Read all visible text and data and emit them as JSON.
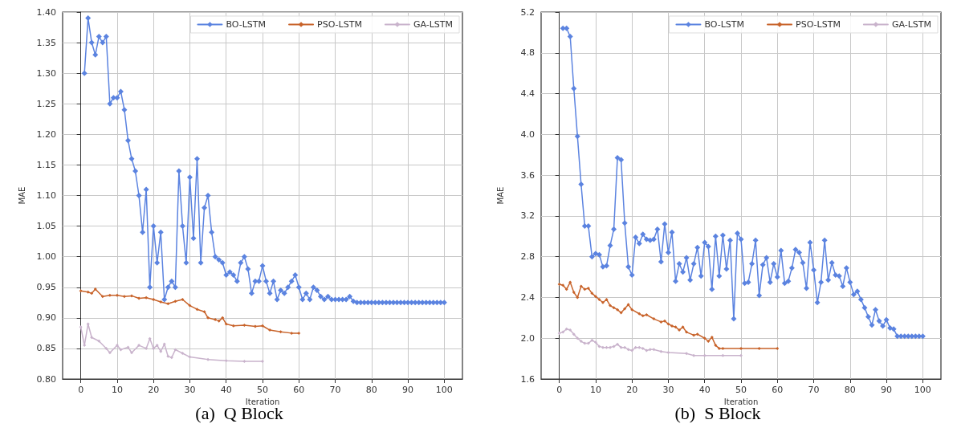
{
  "chart_data": [
    {
      "type": "line",
      "title": "(a)  Q Block",
      "xlabel": "Iteration",
      "ylabel": "MAE",
      "marker": "diamond",
      "grid": true,
      "legend": "top right",
      "xlim": [
        -5,
        105
      ],
      "xticks": [
        0,
        10,
        20,
        30,
        40,
        50,
        60,
        70,
        80,
        90,
        100
      ],
      "ylim": [
        0.8,
        1.4
      ],
      "yticks": [
        {
          "value": 0.8,
          "label": "0.80"
        },
        {
          "value": 0.85,
          "label": "0.85"
        },
        {
          "value": 0.9,
          "label": "0.90"
        },
        {
          "value": 0.95,
          "label": "0.95"
        },
        {
          "value": 1.0,
          "label": "1.00"
        },
        {
          "value": 1.05,
          "label": "1.05"
        },
        {
          "value": 1.1,
          "label": "1.10"
        },
        {
          "value": 1.15,
          "label": "1.15"
        },
        {
          "value": 1.2,
          "label": "1.20"
        },
        {
          "value": 1.25,
          "label": "1.25"
        },
        {
          "value": 1.3,
          "label": "1.30"
        },
        {
          "value": 1.35,
          "label": "1.35"
        },
        {
          "value": 1.4,
          "label": "1.40"
        }
      ],
      "series": [
        {
          "name": "BO-LSTM",
          "color": "#5b83e0",
          "x": [
            1,
            2,
            3,
            4,
            5,
            6,
            7,
            8,
            9,
            10,
            11,
            12,
            13,
            14,
            15,
            16,
            17,
            18,
            19,
            20,
            21,
            22,
            23,
            24,
            25,
            26,
            27,
            28,
            29,
            30,
            31,
            32,
            33,
            34,
            35,
            36,
            37,
            38,
            39,
            40,
            41,
            42,
            43,
            44,
            45,
            46,
            47,
            48,
            49,
            50,
            51,
            52,
            53,
            54,
            55,
            56,
            57,
            58,
            59,
            60,
            61,
            62,
            63,
            64,
            65,
            66,
            67,
            68,
            69,
            70,
            71,
            72,
            73,
            74,
            75,
            76,
            77,
            78,
            79,
            80,
            81,
            82,
            83,
            84,
            85,
            86,
            87,
            88,
            89,
            90,
            91,
            92,
            93,
            94,
            95,
            96,
            97,
            98,
            99,
            100
          ],
          "values": [
            1.3,
            1.39,
            1.35,
            1.33,
            1.36,
            1.35,
            1.36,
            1.25,
            1.26,
            1.26,
            1.27,
            1.24,
            1.19,
            1.16,
            1.14,
            1.1,
            1.04,
            1.11,
            0.95,
            1.05,
            0.99,
            1.04,
            0.93,
            0.95,
            0.96,
            0.95,
            1.14,
            1.05,
            0.99,
            1.13,
            1.03,
            1.16,
            0.99,
            1.08,
            1.1,
            1.04,
            1.0,
            0.995,
            0.99,
            0.97,
            0.975,
            0.97,
            0.96,
            0.99,
            1.0,
            0.98,
            0.94,
            0.96,
            0.96,
            0.985,
            0.96,
            0.94,
            0.96,
            0.93,
            0.945,
            0.94,
            0.95,
            0.96,
            0.97,
            0.95,
            0.93,
            0.94,
            0.93,
            0.95,
            0.945,
            0.935,
            0.93,
            0.935,
            0.93,
            0.93,
            0.93,
            0.93,
            0.93,
            0.935,
            0.927,
            0.925,
            0.925,
            0.925,
            0.925,
            0.925,
            0.925,
            0.925,
            0.925,
            0.925,
            0.925,
            0.925,
            0.925,
            0.925,
            0.925,
            0.925,
            0.925,
            0.925,
            0.925,
            0.925,
            0.925,
            0.925,
            0.925,
            0.925,
            0.925,
            0.925
          ]
        },
        {
          "name": "PSO-LSTM",
          "color": "#c8632a",
          "x": [
            0,
            2,
            3,
            4,
            6,
            8,
            10,
            12,
            14,
            16,
            18,
            20,
            22,
            24,
            26,
            28,
            30,
            32,
            34,
            35,
            37,
            38,
            39,
            40,
            42,
            45,
            48,
            50,
            52,
            55,
            58,
            60
          ],
          "values": [
            0.944,
            0.942,
            0.94,
            0.947,
            0.935,
            0.937,
            0.937,
            0.935,
            0.936,
            0.932,
            0.933,
            0.93,
            0.926,
            0.923,
            0.927,
            0.93,
            0.92,
            0.914,
            0.91,
            0.9,
            0.897,
            0.895,
            0.9,
            0.89,
            0.887,
            0.888,
            0.886,
            0.887,
            0.88,
            0.877,
            0.875,
            0.875
          ]
        },
        {
          "name": "GA-LSTM",
          "color": "#c9b3cc",
          "x": [
            0,
            1,
            2,
            3,
            5,
            7,
            8,
            10,
            11,
            13,
            14,
            16,
            18,
            19,
            20,
            21,
            22,
            23,
            24,
            25,
            26,
            28,
            30,
            35,
            40,
            45,
            50
          ],
          "values": [
            0.885,
            0.855,
            0.89,
            0.868,
            0.862,
            0.85,
            0.843,
            0.855,
            0.848,
            0.852,
            0.843,
            0.855,
            0.85,
            0.866,
            0.85,
            0.855,
            0.845,
            0.857,
            0.837,
            0.835,
            0.848,
            0.842,
            0.836,
            0.832,
            0.83,
            0.829,
            0.829
          ]
        }
      ]
    },
    {
      "type": "line",
      "title": "(b)  S Block",
      "xlabel": "Iteration",
      "ylabel": "MAE",
      "marker": "diamond",
      "grid": true,
      "legend": "top right",
      "xlim": [
        -5,
        105
      ],
      "xticks": [
        0,
        10,
        20,
        30,
        40,
        50,
        60,
        70,
        80,
        90,
        100
      ],
      "ylim": [
        1.6,
        5.2
      ],
      "yticks": [
        {
          "value": 1.6,
          "label": "1.6"
        },
        {
          "value": 2.0,
          "label": "2.0"
        },
        {
          "value": 2.4,
          "label": "2.4"
        },
        {
          "value": 2.8,
          "label": "2.8"
        },
        {
          "value": 3.2,
          "label": "3.2"
        },
        {
          "value": 3.6,
          "label": "3.6"
        },
        {
          "value": 4.0,
          "label": "4.0"
        },
        {
          "value": 4.4,
          "label": "4.4"
        },
        {
          "value": 4.8,
          "label": "4.8"
        },
        {
          "value": 5.2,
          "label": "5.2"
        }
      ],
      "series": [
        {
          "name": "BO-LSTM",
          "color": "#5b83e0",
          "x": [
            1,
            2,
            3,
            4,
            5,
            6,
            7,
            8,
            9,
            10,
            11,
            12,
            13,
            14,
            15,
            16,
            17,
            18,
            19,
            20,
            21,
            22,
            23,
            24,
            25,
            26,
            27,
            28,
            29,
            30,
            31,
            32,
            33,
            34,
            35,
            36,
            37,
            38,
            39,
            40,
            41,
            42,
            43,
            44,
            45,
            46,
            47,
            48,
            49,
            50,
            51,
            52,
            53,
            54,
            55,
            56,
            57,
            58,
            59,
            60,
            61,
            62,
            63,
            64,
            65,
            66,
            67,
            68,
            69,
            70,
            71,
            72,
            73,
            74,
            75,
            76,
            77,
            78,
            79,
            80,
            81,
            82,
            83,
            84,
            85,
            86,
            87,
            88,
            89,
            90,
            91,
            92,
            93,
            94,
            95,
            96,
            97,
            98,
            99,
            100
          ],
          "values": [
            5.04,
            5.04,
            4.96,
            4.45,
            3.98,
            3.51,
            3.1,
            3.1,
            2.8,
            2.83,
            2.82,
            2.7,
            2.71,
            2.91,
            3.07,
            3.77,
            3.75,
            3.13,
            2.7,
            2.62,
            2.99,
            2.93,
            3.02,
            2.97,
            2.96,
            2.97,
            3.07,
            2.75,
            3.12,
            2.84,
            3.04,
            2.56,
            2.73,
            2.65,
            2.79,
            2.57,
            2.73,
            2.89,
            2.61,
            2.94,
            2.9,
            2.48,
            3.0,
            2.61,
            3.01,
            2.68,
            2.96,
            2.19,
            3.03,
            2.97,
            2.54,
            2.55,
            2.73,
            2.96,
            2.42,
            2.72,
            2.79,
            2.55,
            2.73,
            2.6,
            2.86,
            2.54,
            2.56,
            2.69,
            2.87,
            2.84,
            2.74,
            2.49,
            2.94,
            2.67,
            2.35,
            2.55,
            2.96,
            2.57,
            2.74,
            2.62,
            2.61,
            2.51,
            2.69,
            2.55,
            2.43,
            2.46,
            2.38,
            2.3,
            2.21,
            2.13,
            2.28,
            2.17,
            2.12,
            2.18,
            2.1,
            2.09,
            2.02,
            2.02,
            2.02,
            2.02,
            2.02,
            2.02,
            2.02,
            2.02
          ]
        },
        {
          "name": "PSO-LSTM",
          "color": "#c8632a",
          "x": [
            0,
            1,
            2,
            3,
            4,
            5,
            6,
            7,
            8,
            9,
            10,
            11,
            12,
            13,
            14,
            15,
            16,
            17,
            18,
            19,
            20,
            22,
            23,
            24,
            26,
            28,
            29,
            30,
            31,
            32,
            33,
            34,
            35,
            37,
            38,
            40,
            41,
            42,
            43,
            44,
            45,
            50,
            55,
            60
          ],
          "values": [
            2.53,
            2.52,
            2.48,
            2.55,
            2.45,
            2.4,
            2.51,
            2.48,
            2.49,
            2.44,
            2.41,
            2.38,
            2.35,
            2.38,
            2.32,
            2.3,
            2.28,
            2.25,
            2.29,
            2.33,
            2.28,
            2.24,
            2.22,
            2.23,
            2.19,
            2.16,
            2.17,
            2.14,
            2.12,
            2.11,
            2.08,
            2.11,
            2.06,
            2.03,
            2.04,
            2.0,
            1.97,
            2.01,
            1.93,
            1.9,
            1.9,
            1.9,
            1.9,
            1.9
          ]
        },
        {
          "name": "GA-LSTM",
          "color": "#c9b3cc",
          "x": [
            0,
            1,
            2,
            3,
            4,
            5,
            6,
            7,
            8,
            9,
            10,
            11,
            12,
            13,
            14,
            15,
            16,
            17,
            18,
            19,
            20,
            21,
            22,
            23,
            24,
            25,
            26,
            28,
            30,
            35,
            37,
            40,
            45,
            50
          ],
          "values": [
            2.05,
            2.06,
            2.09,
            2.08,
            2.04,
            2.0,
            1.97,
            1.95,
            1.95,
            1.98,
            1.96,
            1.92,
            1.91,
            1.91,
            1.91,
            1.92,
            1.94,
            1.91,
            1.91,
            1.89,
            1.88,
            1.91,
            1.91,
            1.9,
            1.88,
            1.89,
            1.89,
            1.87,
            1.86,
            1.85,
            1.83,
            1.83,
            1.83,
            1.83
          ]
        }
      ]
    }
  ]
}
